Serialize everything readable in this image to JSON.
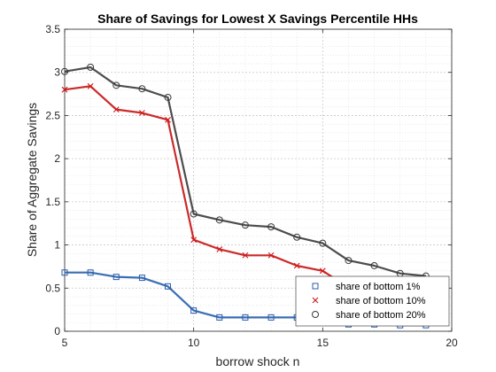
{
  "chart_data": {
    "type": "line",
    "title": "Share of Savings for Lowest X Savings Percentile HHs",
    "xlabel": "borrow shock n",
    "ylabel": "Share of Aggregate Savings",
    "xlim": [
      5,
      20
    ],
    "ylim": [
      0,
      3.5
    ],
    "xticks": [
      5,
      10,
      15,
      20
    ],
    "yticks": [
      0,
      0.5,
      1,
      1.5,
      2,
      2.5,
      3,
      3.5
    ],
    "grid": true,
    "minor_grid": true,
    "legend_position": "bottom-right",
    "x": [
      5,
      6,
      7,
      8,
      9,
      10,
      11,
      12,
      13,
      14,
      15,
      16,
      17,
      18,
      19
    ],
    "series": [
      {
        "name": "share of bottom 1%",
        "marker": "square",
        "color": "#3a6eb4",
        "values": [
          0.68,
          0.68,
          0.63,
          0.62,
          0.52,
          0.24,
          0.16,
          0.16,
          0.16,
          0.16,
          0.1,
          0.08,
          0.08,
          0.07,
          0.07
        ]
      },
      {
        "name": "share of bottom 10%",
        "marker": "x",
        "color": "#cc2a2a",
        "values": [
          2.8,
          2.84,
          2.57,
          2.53,
          2.45,
          1.06,
          0.95,
          0.88,
          0.88,
          0.76,
          0.7,
          0.51,
          0.47,
          0.42,
          0.38
        ]
      },
      {
        "name": "share of bottom 20%",
        "marker": "circle",
        "color": "#4d4d4d",
        "values": [
          3.01,
          3.06,
          2.85,
          2.81,
          2.71,
          1.36,
          1.29,
          1.23,
          1.21,
          1.09,
          1.02,
          0.82,
          0.76,
          0.67,
          0.64
        ]
      }
    ]
  }
}
